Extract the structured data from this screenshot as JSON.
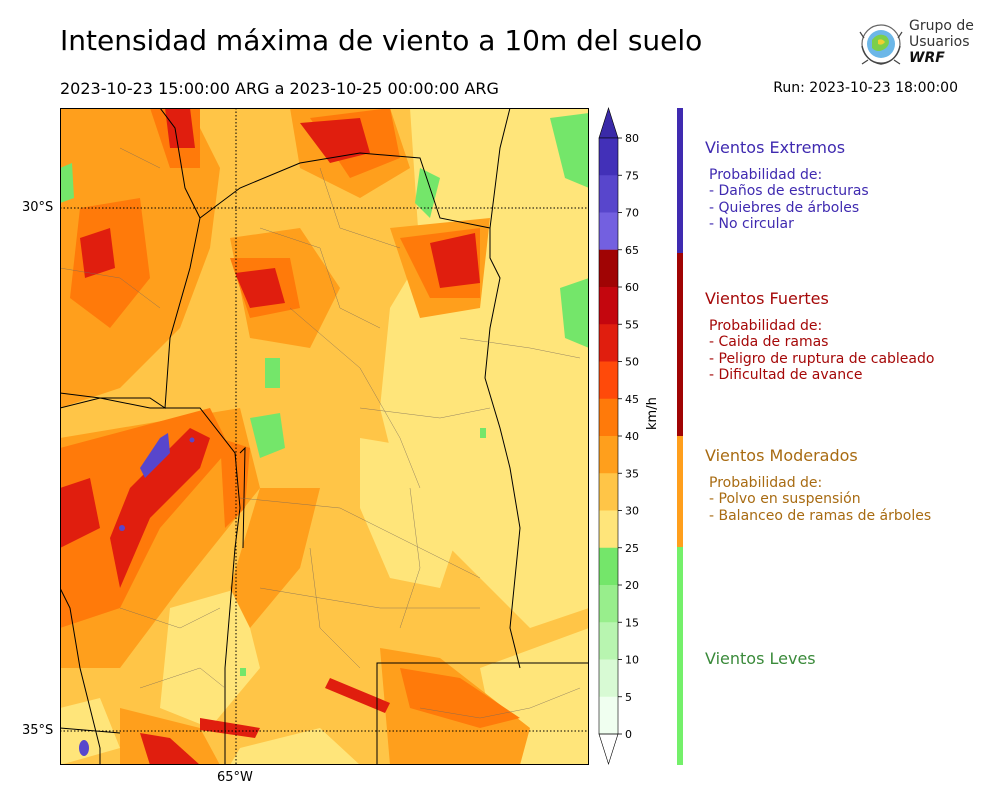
{
  "header": {
    "title": "Intensidad máxima de viento a 10m del suelo",
    "period": "2023-10-23 15:00:00 ARG  a  2023-10-25 00:00:00 ARG",
    "run": "Run: 2023-10-23 18:00:00"
  },
  "logo": {
    "line1": "Grupo de",
    "line2": "Usuarios",
    "line3": "WRF"
  },
  "map": {
    "lat_labels": [
      "30°S",
      "35°S"
    ],
    "lon_labels": [
      "65°W"
    ]
  },
  "colorbar": {
    "unit": "km/h",
    "ticks": [
      "0",
      "5",
      "10",
      "15",
      "20",
      "25",
      "30",
      "35",
      "40",
      "45",
      "50",
      "55",
      "60",
      "65",
      "70",
      "75",
      "80"
    ],
    "colors": [
      "#f0fff0",
      "#d8fad4",
      "#b8f5b0",
      "#98ee8c",
      "#74e66a",
      "#ffe57a",
      "#ffc547",
      "#ff9f1c",
      "#ff7a0a",
      "#ff4a0a",
      "#e01e0e",
      "#c4060e",
      "#a00404",
      "#7360e0",
      "#5846cc",
      "#4230b8"
    ],
    "over_color": "#3a2aa8",
    "under_color": "#ffffff"
  },
  "categories": [
    {
      "title": "Vientos Extremos",
      "color": "#3f2ab0",
      "lines": [
        "Probabilidad de:",
        "- Daños de estructuras",
        "- Quiebres de árboles",
        "- No circular"
      ]
    },
    {
      "title": "Vientos Fuertes",
      "color": "#a50808",
      "lines": [
        "Probabilidad de:",
        "- Caida de ramas",
        "- Peligro de ruptura de cableado",
        "- Dificultad de avance"
      ]
    },
    {
      "title": "Vientos Moderados",
      "color": "#a86b12",
      "lines": [
        "Probabilidad de:",
        "- Polvo en suspensión",
        "- Balanceo de ramas de árboles"
      ]
    },
    {
      "title": "Vientos Leves",
      "color": "#3a8a3a",
      "lines": []
    }
  ],
  "strip_colors": [
    "#3f2ab0",
    "#a00404",
    "#ff9f1c",
    "#74f06a"
  ]
}
